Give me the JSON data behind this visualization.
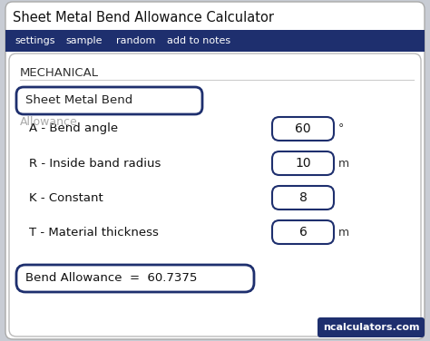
{
  "title": "Sheet Metal Bend Allowance Calculator",
  "nav_items": [
    "settings",
    "sample",
    "random",
    "add to notes"
  ],
  "nav_bg": "#1e2f6e",
  "nav_text": "#ffffff",
  "section_label": "MECHANICAL",
  "input_box_label": "Sheet Metal Bend",
  "overlap_label": "Allowance",
  "fields": [
    {
      "label": "A - Bend angle",
      "value": "60",
      "unit": "°"
    },
    {
      "label": "R - Inside band radius",
      "value": "10",
      "unit": "m"
    },
    {
      "label": "K - Constant",
      "value": "8",
      "unit": ""
    },
    {
      "label": "T - Material thickness",
      "value": "6",
      "unit": "m"
    }
  ],
  "result_text": "Bend Allowance  =  60.7375",
  "watermark": "ncalculators.com",
  "watermark_bg": "#1e2f6e",
  "watermark_text": "#ffffff",
  "bg_color": "#c8ccd4",
  "card_color": "#ffffff",
  "border_color": "#1e2f6e",
  "label_color": "#111111",
  "title_color": "#111111",
  "section_color": "#333333"
}
